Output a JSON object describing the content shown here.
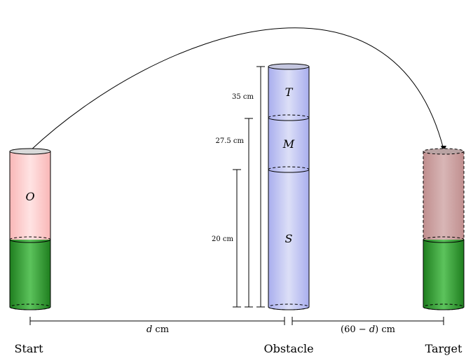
{
  "segments": {
    "top_label": "T",
    "middle_label": "M",
    "bottom_label": "S",
    "object_label": "O"
  },
  "heights": {
    "h35": "35 cm",
    "h275": "27.5 cm",
    "h20": "20 cm"
  },
  "distances": {
    "left_var": "d",
    "left_unit": " cm",
    "right_expr": "(60 − ",
    "right_var": "d",
    "right_tail": ") cm"
  },
  "positions": {
    "start": "Start",
    "obstacle": "Obstacle",
    "target": "Target"
  },
  "colors": {
    "pink": "#ffd0d0",
    "green": "#2f9a2f",
    "blue": "#b8bcf0",
    "ghost": "#c99a9a"
  }
}
